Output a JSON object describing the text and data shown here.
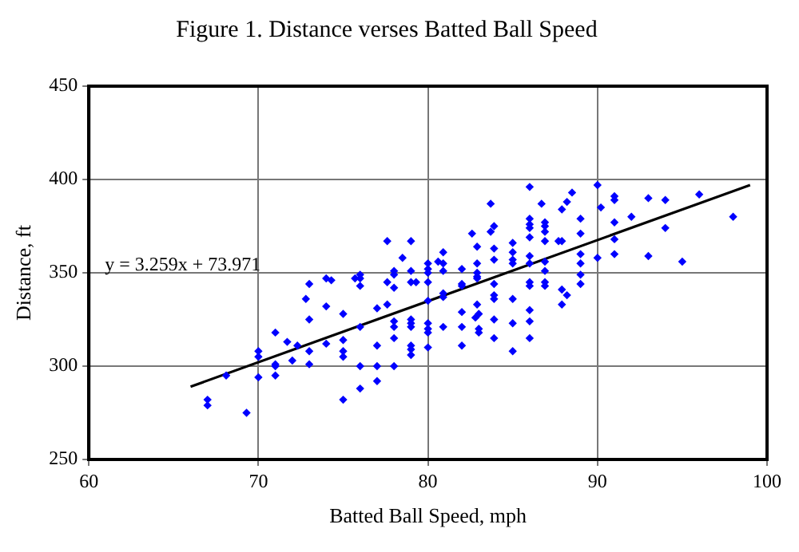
{
  "chart_data": {
    "type": "scatter",
    "title": "Figure 1. Distance verses Batted Ball Speed",
    "xlabel": "Batted Ball Speed, mph",
    "ylabel": "Distance, ft",
    "annotations": [
      "y = 3.259x + 73.971"
    ],
    "xlim": [
      60,
      100
    ],
    "xticks": [
      60,
      70,
      80,
      90,
      100
    ],
    "ylim": [
      250,
      450
    ],
    "yticks": [
      250,
      300,
      350,
      400,
      450
    ],
    "grid": true,
    "legend": false,
    "series": [
      {
        "color": "#0000ff",
        "marker": "diamond",
        "x": [
          67,
          67,
          69.3,
          68.1,
          70,
          70,
          70,
          71,
          71,
          71,
          71,
          71.7,
          72,
          72.3,
          72.8,
          73,
          73,
          73,
          73,
          74,
          74.3,
          74,
          74,
          75,
          75,
          75,
          75,
          75,
          75.7,
          76,
          76,
          76,
          76,
          76,
          76,
          77,
          77,
          77,
          77,
          77.6,
          77.6,
          77.6,
          78,
          78,
          78,
          78,
          78,
          78,
          78,
          78.5,
          79,
          79,
          79,
          79,
          79,
          79,
          79,
          79,
          79,
          79.3,
          80,
          80,
          80,
          80,
          80,
          80,
          80,
          80,
          80,
          80.6,
          80.9,
          80.9,
          80.9,
          80.9,
          80.9,
          80.9,
          82,
          82,
          82,
          82,
          82,
          82,
          82.6,
          82.9,
          82.9,
          82.9,
          82.9,
          82.9,
          82.9,
          82.8,
          83,
          83,
          83,
          83.7,
          83.7,
          83.9,
          83.9,
          83.9,
          83.9,
          83.9,
          83.9,
          83.9,
          83.9,
          85,
          85,
          85,
          85,
          85,
          85,
          85,
          86,
          86,
          86,
          86,
          86,
          86,
          86,
          86,
          86,
          86,
          86,
          86,
          86.7,
          86.9,
          86.9,
          86.9,
          86.9,
          86.9,
          86.9,
          86.9,
          86.9,
          87.7,
          87.9,
          87.9,
          88.2,
          88.5,
          87.9,
          88.2,
          87.9,
          89,
          89,
          89,
          89,
          89,
          89,
          90,
          90.2,
          90,
          91,
          91,
          91,
          91,
          91,
          92,
          93,
          93,
          94,
          94,
          95,
          96,
          98
        ],
        "values": [
          282,
          279,
          275,
          295,
          294,
          308,
          305,
          318,
          301,
          300,
          295,
          313,
          303,
          311,
          336,
          344,
          325,
          308,
          301,
          347,
          346,
          332,
          312,
          328,
          314,
          308,
          305,
          282,
          347,
          349,
          347,
          343,
          321,
          300,
          288,
          331,
          311,
          300,
          292,
          367,
          345,
          333,
          349,
          351,
          342,
          324,
          321,
          315,
          300,
          358,
          367,
          351,
          345,
          325,
          323,
          321,
          311,
          309,
          306,
          345,
          355,
          352,
          350,
          345,
          335,
          323,
          320,
          318,
          310,
          356,
          361,
          355,
          351,
          339,
          337,
          321,
          352,
          344,
          343,
          329,
          321,
          311,
          371,
          364,
          355,
          350,
          348,
          347,
          333,
          326,
          328,
          320,
          318,
          387,
          372,
          375,
          363,
          357,
          344,
          338,
          336,
          325,
          315,
          366,
          361,
          357,
          355,
          336,
          323,
          308,
          396,
          379,
          376,
          374,
          369,
          359,
          355,
          345,
          343,
          330,
          324,
          315,
          387,
          377,
          375,
          372,
          367,
          356,
          351,
          345,
          343,
          367,
          367,
          384,
          388,
          393,
          341,
          338,
          333,
          379,
          371,
          360,
          355,
          349,
          344,
          397,
          385,
          358,
          391,
          389,
          377,
          368,
          360,
          380,
          390,
          359,
          389,
          374,
          356,
          392,
          380
        ]
      },
      {
        "type": "line",
        "marker": "none",
        "color": "#000000",
        "x": [
          66,
          99
        ],
        "values": [
          289,
          397
        ]
      }
    ]
  }
}
